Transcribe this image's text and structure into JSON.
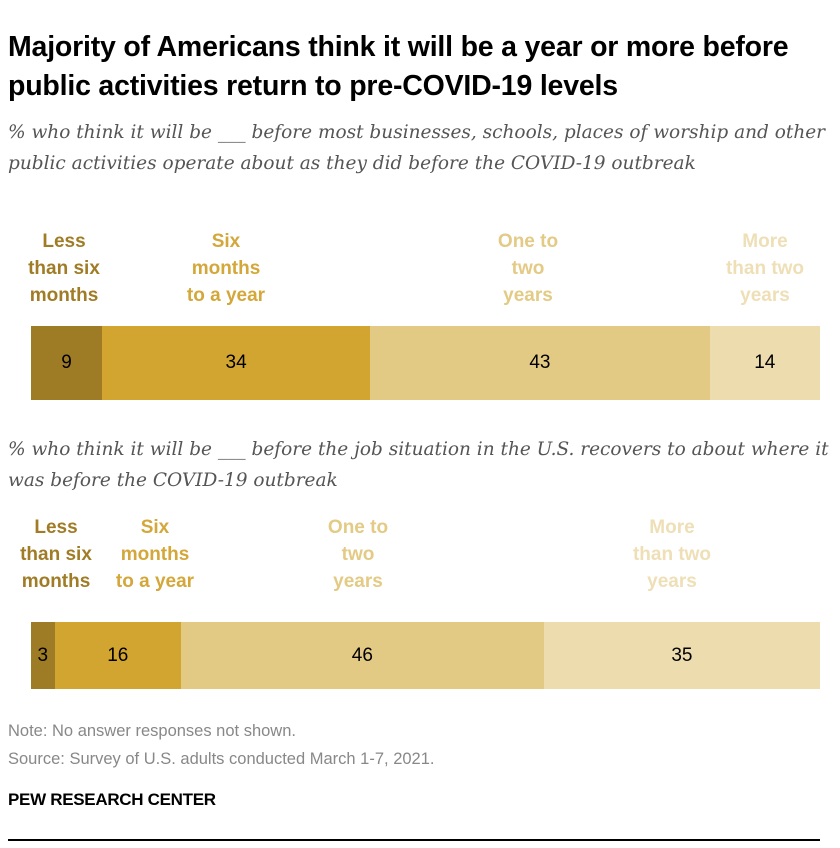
{
  "title": "Majority of Americans think it will be a year or more before public activities return to pre-COVID-19 levels",
  "colors": {
    "less_than_six_months": "#9e7b25",
    "six_months_to_year": "#d2a531",
    "one_to_two_years": "#e2c984",
    "more_than_two_years": "#ecdcae"
  },
  "label_colors": [
    "#a07c27",
    "#d4a73a",
    "#e3ca85",
    "#eedfb6"
  ],
  "chart_data": [
    {
      "type": "bar",
      "orientation": "horizontal-stacked",
      "subtitle": "% who think it will be ___ before most businesses, schools, places of worship and other public activities operate about as they did before the COVID-19 outbreak",
      "categories": [
        "Less\nthan six\nmonths",
        "Six\nmonths\nto a year",
        "One to\ntwo\nyears",
        "More\nthan two\nyears"
      ],
      "values": [
        9,
        34,
        43,
        14
      ],
      "xlim": [
        0,
        100
      ]
    },
    {
      "type": "bar",
      "orientation": "horizontal-stacked",
      "subtitle": "% who think it will be ___ before the job situation in the U.S. recovers to about where it was before the COVID-19 outbreak",
      "categories": [
        "Less\nthan six\nmonths",
        "Six\nmonths\nto a year",
        "One to\ntwo\nyears",
        "More\nthan two\nyears"
      ],
      "values": [
        3,
        16,
        46,
        35
      ],
      "xlim": [
        0,
        100
      ]
    }
  ],
  "note": "Note: No answer responses not shown.",
  "source": "Source: Survey of U.S. adults conducted March 1-7, 2021.",
  "brand": "PEW RESEARCH CENTER"
}
